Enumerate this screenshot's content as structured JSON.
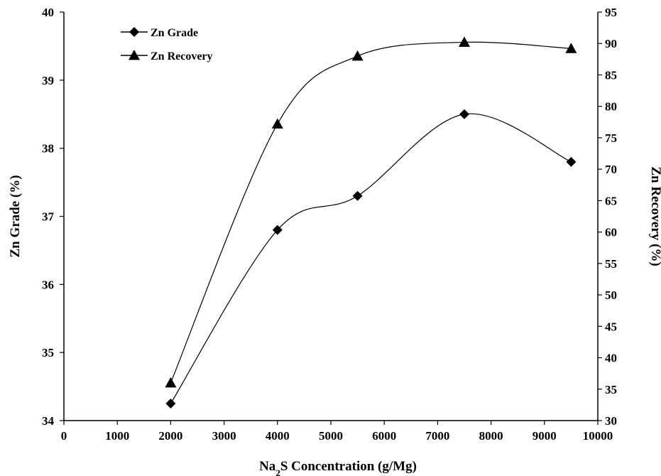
{
  "chart_data": {
    "type": "line",
    "xlabel_main": "Na",
    "xlabel_sub": "2",
    "xlabel_rest": "S Concentration (g/Mg)",
    "ylabel_left": "Zn  Grade (%)",
    "ylabel_right": "Zn Recovery (%)",
    "xlim": [
      0,
      10000
    ],
    "xticks": [
      0,
      1000,
      2000,
      3000,
      4000,
      5000,
      6000,
      7000,
      8000,
      9000,
      10000
    ],
    "ylim_left": [
      34,
      40
    ],
    "yticks_left": [
      34,
      35,
      36,
      37,
      38,
      39,
      40
    ],
    "ylim_right": [
      30,
      95
    ],
    "yticks_right": [
      30,
      35,
      40,
      45,
      50,
      55,
      60,
      65,
      70,
      75,
      80,
      85,
      90,
      95
    ],
    "legend_position": "top-left",
    "grid": false,
    "series": [
      {
        "name": "Zn Grade",
        "axis": "left",
        "marker": "diamond",
        "x": [
          2000,
          4000,
          5500,
          7500,
          9500
        ],
        "y": [
          34.25,
          36.8,
          37.3,
          38.5,
          37.8
        ]
      },
      {
        "name": "Zn Recovery",
        "axis": "right",
        "marker": "triangle",
        "x": [
          2000,
          4000,
          5500,
          7500,
          9500
        ],
        "y": [
          36.0,
          77.2,
          88.0,
          90.2,
          89.2
        ]
      }
    ],
    "colors": {
      "line": "#000000",
      "marker": "#000000",
      "axis": "#000000"
    }
  }
}
